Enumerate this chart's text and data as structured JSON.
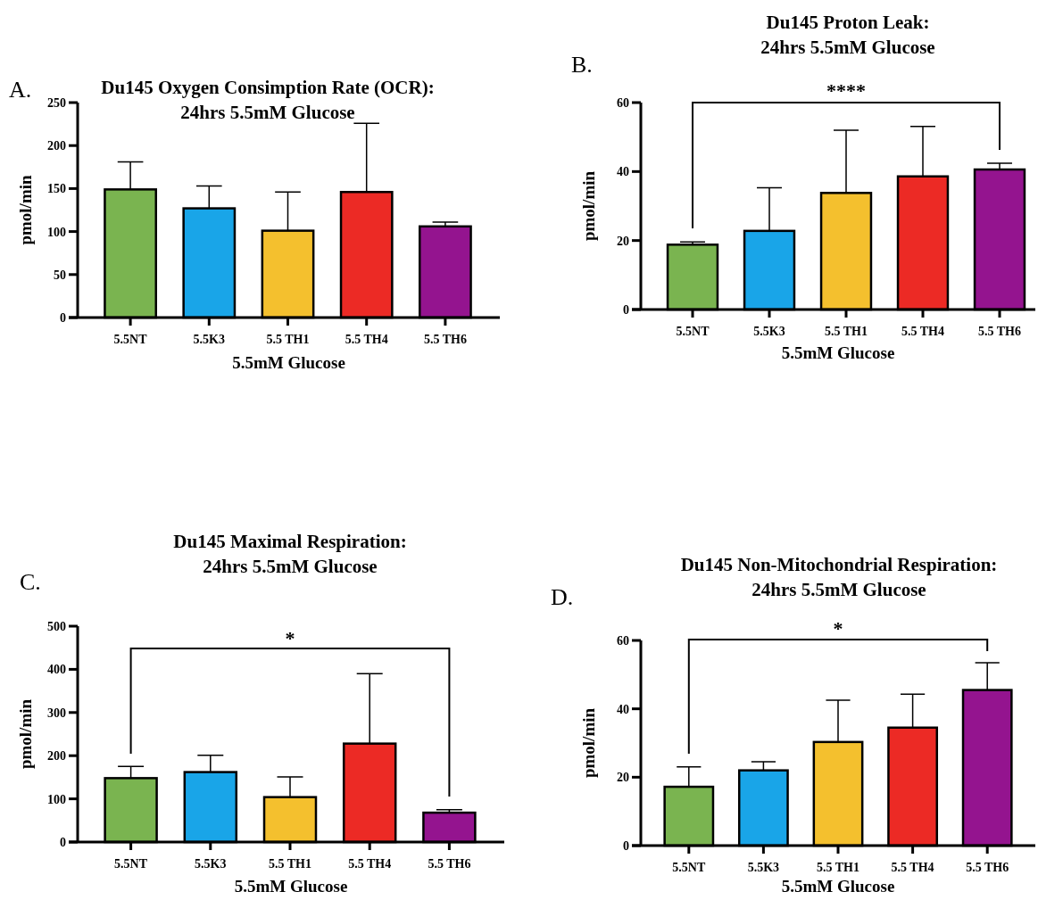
{
  "chart_data": [
    {
      "type": "bar",
      "title": "Du145 Oxygen Consimption Rate (OCR):\n24hrs 5.5mM Glucose",
      "xlabel": "5.5mM Glucose",
      "ylabel": "pmol/min",
      "annotations": [
        "A."
      ],
      "categories": [
        "5.5NT",
        "5.5K3",
        "5.5 TH1",
        "5.5 TH4",
        "5.5 TH6"
      ],
      "values": [
        149,
        127,
        101,
        146,
        106
      ],
      "errors": [
        [
          149,
          181
        ],
        [
          127,
          153
        ],
        [
          101,
          146
        ],
        [
          146,
          226
        ],
        [
          106,
          111
        ]
      ],
      "colors": [
        "#7ab450",
        "#19a5e8",
        "#f4c02e",
        "#ec2a25",
        "#94148f"
      ],
      "ylim": [
        0,
        250
      ],
      "yticks": [
        0,
        50,
        100,
        150,
        200,
        250
      ],
      "grid": false
    },
    {
      "type": "bar",
      "title": "Du145 Proton Leak:\n24hrs 5.5mM Glucose",
      "xlabel": "5.5mM Glucose",
      "ylabel": "pmol/min",
      "annotations": [
        "B.",
        "****"
      ],
      "categories": [
        "5.5NT",
        "5.5K3",
        "5.5 TH1",
        "5.5 TH4",
        "5.5 TH6"
      ],
      "values": [
        18.8,
        22.8,
        33.8,
        38.6,
        40.6
      ],
      "errors": [
        [
          18.8,
          19.6
        ],
        [
          22.8,
          35.3
        ],
        [
          33.8,
          52
        ],
        [
          38.6,
          53.1
        ],
        [
          40.6,
          42.4
        ]
      ],
      "colors": [
        "#7ab450",
        "#19a5e8",
        "#f4c02e",
        "#ec2a25",
        "#94148f"
      ],
      "ylim": [
        0,
        60
      ],
      "yticks": [
        0,
        20,
        40,
        60
      ],
      "grid": false
    },
    {
      "type": "bar",
      "title": "Du145 Maximal Respiration:\n24hrs 5.5mM Glucose",
      "xlabel": "5.5mM Glucose",
      "ylabel": "pmol/min",
      "annotations": [
        "C.",
        "*"
      ],
      "categories": [
        "5.5NT",
        "5.5K3",
        "5.5 TH1",
        "5.5 TH4",
        "5.5 TH6"
      ],
      "values": [
        148,
        162,
        104,
        228,
        68
      ],
      "errors": [
        [
          148,
          175
        ],
        [
          162,
          201
        ],
        [
          104,
          151
        ],
        [
          228,
          390
        ],
        [
          68,
          75
        ]
      ],
      "colors": [
        "#7ab450",
        "#19a5e8",
        "#f4c02e",
        "#ec2a25",
        "#94148f"
      ],
      "ylim": [
        0,
        500
      ],
      "yticks": [
        0,
        100,
        200,
        300,
        400,
        500
      ],
      "grid": false
    },
    {
      "type": "bar",
      "title": "Du145 Non-Mitochondrial Respiration:\n24hrs 5.5mM Glucose",
      "xlabel": "5.5mM Glucose",
      "ylabel": "pmol/min",
      "annotations": [
        "D.",
        "*"
      ],
      "categories": [
        "5.5NT",
        "5.5K3",
        "5.5 TH1",
        "5.5 TH4",
        "5.5 TH6"
      ],
      "values": [
        17.2,
        22,
        30.3,
        34.5,
        45.5
      ],
      "errors": [
        [
          17.2,
          23
        ],
        [
          22,
          24.5
        ],
        [
          30.3,
          42.5
        ],
        [
          34.5,
          44.3
        ],
        [
          45.5,
          53.5
        ]
      ],
      "colors": [
        "#7ab450",
        "#19a5e8",
        "#f4c02e",
        "#ec2a25",
        "#94148f"
      ],
      "ylim": [
        0,
        60
      ],
      "yticks": [
        0,
        20,
        40,
        60
      ],
      "grid": false
    }
  ]
}
